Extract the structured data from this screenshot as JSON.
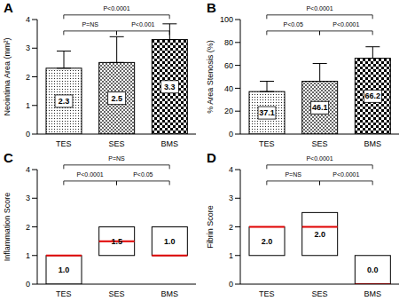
{
  "chart_data": [
    {
      "type": "bar",
      "title": "A",
      "ylabel": "Neointima Area (mm²)",
      "categories": [
        "TES",
        "SES",
        "BMS"
      ],
      "values": [
        2.3,
        2.5,
        3.3
      ],
      "errors": [
        0.6,
        0.9,
        0.55
      ],
      "color": "#000000",
      "ylim": [
        0,
        4
      ],
      "yticks": [
        0,
        1,
        2,
        3,
        4
      ],
      "grid": false,
      "data_labels": true,
      "annotations": [
        {
          "from": "TES",
          "to": "SES",
          "text": "P=NS"
        },
        {
          "from": "SES",
          "to": "BMS",
          "text": "P<0.001"
        },
        {
          "from": "TES",
          "to": "BMS",
          "text": "P<0.0001"
        }
      ]
    },
    {
      "type": "bar",
      "title": "B",
      "ylabel": "% Area Stenosis (%)",
      "categories": [
        "TES",
        "SES",
        "BMS"
      ],
      "values": [
        37.1,
        46.1,
        66.2
      ],
      "errors": [
        9,
        15.5,
        10
      ],
      "color": "#000000",
      "ylim": [
        0,
        100
      ],
      "yticks": [
        0,
        20,
        40,
        60,
        80,
        100
      ],
      "grid": false,
      "data_labels": true,
      "annotations": [
        {
          "from": "TES",
          "to": "SES",
          "text": "P<0.05"
        },
        {
          "from": "SES",
          "to": "BMS",
          "text": "P<0.0001"
        },
        {
          "from": "TES",
          "to": "BMS",
          "text": "P<0.0001"
        }
      ]
    },
    {
      "type": "box",
      "title": "C",
      "ylabel": "Inflammation Score",
      "categories": [
        "TES",
        "SES",
        "BMS"
      ],
      "values": [
        1,
        1.5,
        1
      ],
      "value_labels": [
        "1.0",
        "1.5",
        "1.0"
      ],
      "low": [
        0,
        1,
        1
      ],
      "high": [
        1,
        2,
        2
      ],
      "color": "#000000",
      "ylim": [
        0,
        4
      ],
      "yticks": [
        0,
        1,
        2,
        3,
        4
      ],
      "grid": false,
      "data_labels": true,
      "annotations": [
        {
          "from": "TES",
          "to": "SES",
          "text": "P<0.0001"
        },
        {
          "from": "SES",
          "to": "BMS",
          "text": "P<0.05"
        },
        {
          "from": "TES",
          "to": "BMS",
          "text": "P=NS"
        }
      ]
    },
    {
      "type": "box",
      "title": "D",
      "ylabel": "Fibrin Score",
      "categories": [
        "TES",
        "SES",
        "BMS"
      ],
      "values": [
        2,
        2,
        0
      ],
      "value_labels": [
        "2.0",
        "2.0",
        "0.0"
      ],
      "low": [
        1,
        1,
        0
      ],
      "high": [
        2,
        2.5,
        1
      ],
      "color": "#000000",
      "ylim": [
        0,
        4
      ],
      "yticks": [
        0,
        1,
        2,
        3,
        4
      ],
      "grid": false,
      "data_labels": true,
      "annotations": [
        {
          "from": "TES",
          "to": "SES",
          "text": "P=NS"
        },
        {
          "from": "SES",
          "to": "BMS",
          "text": "P<0.0001"
        },
        {
          "from": "TES",
          "to": "BMS",
          "text": "P<0.0001"
        }
      ]
    }
  ]
}
